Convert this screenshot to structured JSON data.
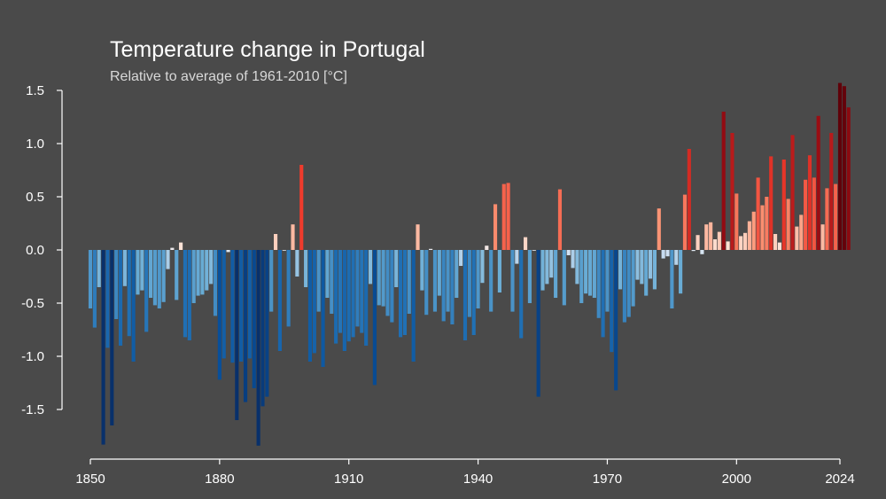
{
  "chart_data": {
    "type": "bar",
    "title": "Temperature change in Portugal",
    "subtitle": "Relative to average of 1961-2010  [°C]",
    "xlabel": "",
    "ylabel": "",
    "x_start": 1850,
    "x_end": 2024,
    "xlim": [
      1850,
      2024
    ],
    "ylim": [
      -1.85,
      1.6
    ],
    "yticks": [
      1.5,
      1.0,
      0.5,
      0.0,
      -0.5,
      -1.0,
      -1.5
    ],
    "ytick_labels": [
      "1.5",
      "1.0",
      "0.5",
      "0.0",
      "-0.5",
      "-1.0",
      "-1.5"
    ],
    "xticks": [
      1850,
      1880,
      1910,
      1940,
      1970,
      2000,
      2024
    ],
    "xtick_labels": [
      "1850",
      "1880",
      "1910",
      "1940",
      "1970",
      "2000",
      "2024"
    ],
    "color_scale_min": -1.6,
    "color_scale_max": 1.6,
    "values": [
      -0.55,
      -0.73,
      -0.35,
      -1.83,
      -0.92,
      -1.65,
      -0.65,
      -0.9,
      -0.34,
      -0.81,
      -1.05,
      -0.42,
      -0.38,
      -0.77,
      -0.45,
      -0.52,
      -0.55,
      -0.49,
      -0.18,
      0.02,
      -0.47,
      0.07,
      -0.82,
      -0.85,
      -0.5,
      -0.43,
      -0.42,
      -0.38,
      -0.32,
      -0.62,
      -1.22,
      -1.02,
      -0.02,
      -1.06,
      -1.6,
      -1.05,
      -1.43,
      -1.02,
      -1.3,
      -1.84,
      -1.47,
      -1.38,
      -0.58,
      0.15,
      -0.95,
      0.0,
      -0.72,
      0.24,
      -0.25,
      0.8,
      -0.35,
      -1.05,
      -0.97,
      -0.58,
      -1.1,
      -0.45,
      -0.6,
      -0.88,
      -0.78,
      -0.95,
      -0.86,
      -0.82,
      -0.72,
      -0.78,
      -0.9,
      -0.32,
      -1.27,
      -0.52,
      -0.53,
      -0.62,
      -0.68,
      -0.35,
      -0.82,
      -0.8,
      -0.6,
      -1.05,
      0.24,
      -0.38,
      -0.61,
      0.01,
      -0.58,
      -0.43,
      -0.67,
      -0.58,
      -0.7,
      -0.45,
      -0.15,
      -0.85,
      -0.63,
      -0.8,
      -0.55,
      -0.31,
      0.04,
      -0.58,
      0.43,
      -0.4,
      0.62,
      0.63,
      -0.58,
      -0.13,
      -0.83,
      0.12,
      -0.5,
      0.0,
      -1.38,
      -0.38,
      -0.32,
      -0.26,
      -0.45,
      0.57,
      -0.52,
      -0.05,
      -0.17,
      -0.32,
      -0.5,
      -0.41,
      -0.43,
      -0.45,
      -0.64,
      -0.82,
      -0.58,
      -0.96,
      -1.32,
      -0.37,
      -0.68,
      -0.63,
      -0.53,
      -0.28,
      -0.32,
      -0.43,
      -0.27,
      -0.37,
      0.39,
      -0.08,
      -0.06,
      -0.55,
      -0.14,
      -0.41,
      0.52,
      0.95,
      -0.01,
      0.14,
      -0.04,
      0.24,
      0.26,
      0.1,
      0.17,
      1.3,
      0.08,
      1.1,
      0.53,
      0.13,
      0.16,
      0.27,
      0.36,
      0.68,
      0.42,
      0.5,
      0.88,
      0.15,
      0.07,
      0.85,
      0.48,
      1.08,
      0.22,
      0.33,
      0.66,
      0.89,
      0.68,
      1.26,
      0.24,
      0.58,
      1.1,
      0.62,
      1.57,
      1.54,
      1.34
    ]
  }
}
